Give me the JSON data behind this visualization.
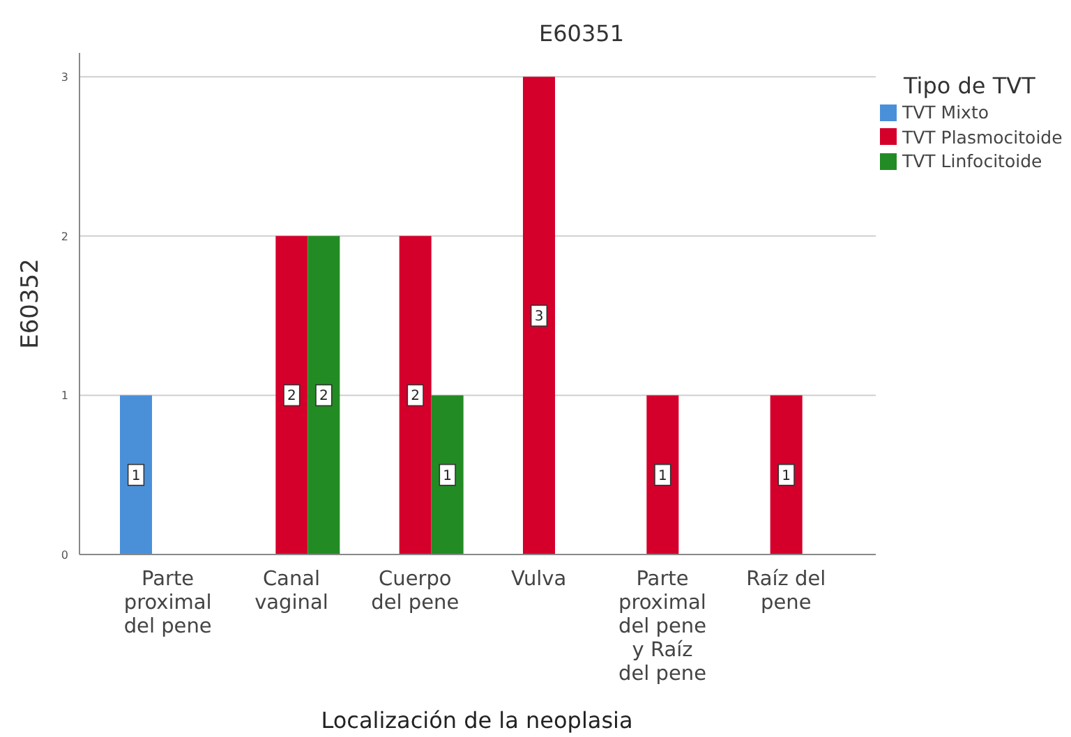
{
  "chart_data": {
    "type": "bar",
    "title": "E60351",
    "xlabel": "Localización de la neoplasia",
    "ylabel": "E60352",
    "legend_title": "Tipo de TVT",
    "categories": [
      "Parte proximal del pene",
      "Canal vaginal",
      "Cuerpo del pene",
      "Vulva",
      "Parte proximal del pene y Raíz del pene",
      "Raíz del pene"
    ],
    "series": [
      {
        "name": "TVT Mixto",
        "color": "#4a90d9",
        "values": [
          1,
          null,
          null,
          null,
          null,
          null
        ]
      },
      {
        "name": "TVT Plasmocitoide",
        "color": "#d4002b",
        "values": [
          null,
          2,
          2,
          3,
          1,
          1
        ]
      },
      {
        "name": "TVT Linfocitoide",
        "color": "#238b23",
        "values": [
          null,
          2,
          1,
          null,
          null,
          null
        ]
      }
    ],
    "ylim": [
      0,
      3.15
    ],
    "yticks": [
      0,
      1,
      2,
      3
    ],
    "grid": "y",
    "legend": "top right",
    "data_labels": true
  }
}
